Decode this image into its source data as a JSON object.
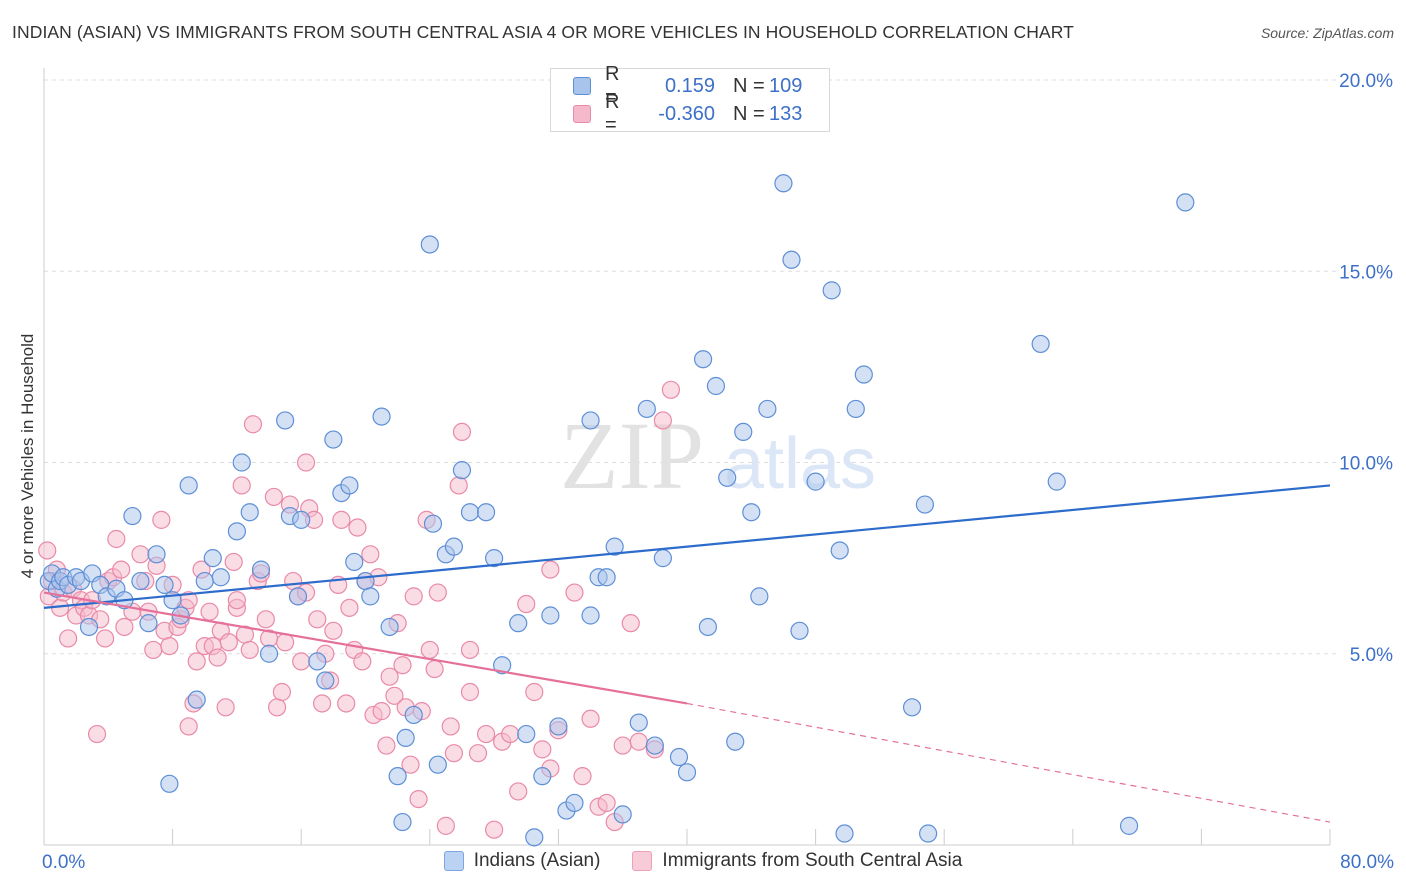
{
  "title": "INDIAN (ASIAN) VS IMMIGRANTS FROM SOUTH CENTRAL ASIA 4 OR MORE VEHICLES IN HOUSEHOLD CORRELATION CHART",
  "source": "Source: ZipAtlas.com",
  "watermark": {
    "zip": "ZIP",
    "atlas": "atlas"
  },
  "legend": {
    "r_label": "R =",
    "n_label": "N =",
    "rows": [
      {
        "r": "0.159",
        "n": "109"
      },
      {
        "r": "-0.360",
        "n": "133"
      }
    ]
  },
  "colors": {
    "blue_fill": "#a9c4ec",
    "blue_stroke": "#5e8fd6",
    "blue_line": "#2d6ccb",
    "pink_fill": "#f5b9cb",
    "pink_stroke": "#e98aa8",
    "pink_line": "#e5709a",
    "tick_text": "#3d70c8",
    "grid": "#dddddd"
  },
  "chart_data": {
    "type": "scatter",
    "title": "INDIAN (ASIAN) VS IMMIGRANTS FROM SOUTH CENTRAL ASIA 4 OR MORE VEHICLES IN HOUSEHOLD CORRELATION CHART",
    "xlabel": "",
    "ylabel": "4 or more Vehicles in Household",
    "xlim": [
      0,
      80
    ],
    "ylim": [
      0,
      20
    ],
    "x_tick_labels": [
      "0.0%",
      "80.0%"
    ],
    "y_ticks": [
      5,
      10,
      15,
      20
    ],
    "y_tick_labels": [
      "5.0%",
      "10.0%",
      "15.0%",
      "20.0%"
    ],
    "grid": true,
    "legend_position": "top-center",
    "series": [
      {
        "name": "Indians (Asian)",
        "color": "#a9c4ec",
        "trend": {
          "x0": 0,
          "y0": 6.2,
          "x1": 80,
          "y1": 9.4
        },
        "points": [
          [
            0.3,
            6.9
          ],
          [
            0.5,
            7.1
          ],
          [
            0.8,
            6.7
          ],
          [
            1.0,
            6.9
          ],
          [
            1.2,
            7.0
          ],
          [
            1.5,
            6.8
          ],
          [
            2.0,
            7.0
          ],
          [
            2.3,
            6.9
          ],
          [
            2.8,
            5.7
          ],
          [
            3.0,
            7.1
          ],
          [
            3.5,
            6.8
          ],
          [
            3.9,
            6.5
          ],
          [
            4.5,
            6.7
          ],
          [
            5.0,
            6.4
          ],
          [
            5.5,
            8.6
          ],
          [
            6.0,
            6.9
          ],
          [
            6.5,
            5.8
          ],
          [
            7.0,
            7.6
          ],
          [
            7.5,
            6.8
          ],
          [
            8.0,
            6.4
          ],
          [
            8.5,
            6.0
          ],
          [
            9.0,
            9.4
          ],
          [
            9.5,
            3.8
          ],
          [
            10.0,
            6.9
          ],
          [
            10.5,
            7.5
          ],
          [
            11.0,
            7.0
          ],
          [
            12.0,
            8.2
          ],
          [
            12.3,
            10.0
          ],
          [
            12.8,
            8.7
          ],
          [
            13.5,
            7.2
          ],
          [
            14.0,
            5.0
          ],
          [
            15.0,
            11.1
          ],
          [
            15.3,
            8.6
          ],
          [
            15.8,
            6.5
          ],
          [
            16.0,
            8.5
          ],
          [
            17.0,
            4.8
          ],
          [
            17.5,
            4.3
          ],
          [
            18.0,
            10.6
          ],
          [
            18.5,
            9.2
          ],
          [
            19.0,
            9.4
          ],
          [
            19.3,
            7.4
          ],
          [
            20.0,
            6.9
          ],
          [
            20.3,
            6.5
          ],
          [
            21.0,
            11.2
          ],
          [
            21.5,
            5.7
          ],
          [
            22.0,
            1.8
          ],
          [
            22.3,
            0.6
          ],
          [
            22.5,
            2.8
          ],
          [
            23.0,
            3.4
          ],
          [
            24.0,
            15.7
          ],
          [
            24.2,
            8.4
          ],
          [
            24.5,
            2.1
          ],
          [
            25.0,
            7.6
          ],
          [
            25.5,
            7.8
          ],
          [
            26.0,
            9.8
          ],
          [
            26.5,
            8.7
          ],
          [
            27.5,
            8.7
          ],
          [
            28.0,
            7.5
          ],
          [
            28.5,
            4.7
          ],
          [
            29.5,
            5.8
          ],
          [
            30.0,
            2.9
          ],
          [
            30.5,
            0.2
          ],
          [
            31.0,
            1.8
          ],
          [
            31.5,
            6.0
          ],
          [
            32.0,
            3.1
          ],
          [
            32.5,
            0.9
          ],
          [
            33.0,
            1.1
          ],
          [
            34.0,
            11.1
          ],
          [
            34.5,
            7.0
          ],
          [
            35.0,
            7.0
          ],
          [
            35.5,
            7.8
          ],
          [
            36.0,
            0.8
          ],
          [
            37.0,
            3.2
          ],
          [
            37.5,
            11.4
          ],
          [
            38.0,
            2.6
          ],
          [
            38.5,
            7.5
          ],
          [
            39.5,
            2.3
          ],
          [
            40.0,
            1.9
          ],
          [
            41.0,
            12.7
          ],
          [
            41.3,
            5.7
          ],
          [
            41.8,
            12.0
          ],
          [
            42.5,
            9.6
          ],
          [
            43.0,
            2.7
          ],
          [
            43.5,
            10.8
          ],
          [
            44.0,
            8.7
          ],
          [
            44.5,
            6.5
          ],
          [
            45.0,
            11.4
          ],
          [
            46.0,
            17.3
          ],
          [
            46.5,
            15.3
          ],
          [
            47.0,
            5.6
          ],
          [
            48.0,
            9.5
          ],
          [
            49.0,
            14.5
          ],
          [
            49.5,
            7.7
          ],
          [
            49.8,
            0.3
          ],
          [
            50.5,
            11.4
          ],
          [
            51.0,
            12.3
          ],
          [
            54.0,
            3.6
          ],
          [
            54.8,
            8.9
          ],
          [
            55.0,
            0.3
          ],
          [
            62.0,
            13.1
          ],
          [
            63.0,
            9.5
          ],
          [
            67.5,
            0.5
          ],
          [
            71.0,
            16.8
          ],
          [
            7.8,
            1.6
          ],
          [
            34.0,
            6.0
          ]
        ]
      },
      {
        "name": "Immigrants from South Central Asia",
        "color": "#f5b9cb",
        "trend": {
          "x0": 0,
          "y0": 6.6,
          "x1": 40,
          "y1": 3.7
        },
        "trend_dashed": {
          "x0": 40,
          "y0": 3.7,
          "x1": 80,
          "y1": 0.6
        },
        "points": [
          [
            0.2,
            7.7
          ],
          [
            0.3,
            6.5
          ],
          [
            0.5,
            6.9
          ],
          [
            0.8,
            7.2
          ],
          [
            1.0,
            6.2
          ],
          [
            1.2,
            6.6
          ],
          [
            1.5,
            5.4
          ],
          [
            1.8,
            6.7
          ],
          [
            2.0,
            6.0
          ],
          [
            2.3,
            6.4
          ],
          [
            2.5,
            6.2
          ],
          [
            2.8,
            6.0
          ],
          [
            3.0,
            6.4
          ],
          [
            3.3,
            2.9
          ],
          [
            3.5,
            5.9
          ],
          [
            3.8,
            5.4
          ],
          [
            4.0,
            6.9
          ],
          [
            4.3,
            7.0
          ],
          [
            4.5,
            8.0
          ],
          [
            4.8,
            7.2
          ],
          [
            5.0,
            5.7
          ],
          [
            5.5,
            6.1
          ],
          [
            6.0,
            7.6
          ],
          [
            6.3,
            6.9
          ],
          [
            6.5,
            6.1
          ],
          [
            6.8,
            5.1
          ],
          [
            7.0,
            7.3
          ],
          [
            7.3,
            8.5
          ],
          [
            7.5,
            5.6
          ],
          [
            7.8,
            5.2
          ],
          [
            8.0,
            6.8
          ],
          [
            8.3,
            5.7
          ],
          [
            8.5,
            5.9
          ],
          [
            8.8,
            6.2
          ],
          [
            9.0,
            6.4
          ],
          [
            9.3,
            3.7
          ],
          [
            9.5,
            4.8
          ],
          [
            9.8,
            7.2
          ],
          [
            10.0,
            5.2
          ],
          [
            10.3,
            6.1
          ],
          [
            10.5,
            5.2
          ],
          [
            10.8,
            4.9
          ],
          [
            11.0,
            5.6
          ],
          [
            11.3,
            3.6
          ],
          [
            11.5,
            5.3
          ],
          [
            11.8,
            7.4
          ],
          [
            12.0,
            6.2
          ],
          [
            12.3,
            9.4
          ],
          [
            12.5,
            5.5
          ],
          [
            12.8,
            5.1
          ],
          [
            13.0,
            11.0
          ],
          [
            13.3,
            6.9
          ],
          [
            13.5,
            7.1
          ],
          [
            13.8,
            5.9
          ],
          [
            14.0,
            5.4
          ],
          [
            14.3,
            9.1
          ],
          [
            14.5,
            3.6
          ],
          [
            14.8,
            4.0
          ],
          [
            15.0,
            5.3
          ],
          [
            15.3,
            8.9
          ],
          [
            15.5,
            6.9
          ],
          [
            15.8,
            6.5
          ],
          [
            16.0,
            4.8
          ],
          [
            16.3,
            10.0
          ],
          [
            16.5,
            8.8
          ],
          [
            16.8,
            8.5
          ],
          [
            17.0,
            5.9
          ],
          [
            17.3,
            3.7
          ],
          [
            17.5,
            5.0
          ],
          [
            17.8,
            4.3
          ],
          [
            18.0,
            5.6
          ],
          [
            18.3,
            6.8
          ],
          [
            18.5,
            8.5
          ],
          [
            18.8,
            3.7
          ],
          [
            19.0,
            6.2
          ],
          [
            19.3,
            5.1
          ],
          [
            19.5,
            8.3
          ],
          [
            19.8,
            4.8
          ],
          [
            20.0,
            6.9
          ],
          [
            20.3,
            7.6
          ],
          [
            20.5,
            3.4
          ],
          [
            20.8,
            7.0
          ],
          [
            21.0,
            3.5
          ],
          [
            21.3,
            2.6
          ],
          [
            21.5,
            4.4
          ],
          [
            21.8,
            3.9
          ],
          [
            22.0,
            5.8
          ],
          [
            22.3,
            4.7
          ],
          [
            22.5,
            3.6
          ],
          [
            22.8,
            2.1
          ],
          [
            23.0,
            6.5
          ],
          [
            23.3,
            1.2
          ],
          [
            23.5,
            3.5
          ],
          [
            23.8,
            8.5
          ],
          [
            24.0,
            5.1
          ],
          [
            24.3,
            4.6
          ],
          [
            24.5,
            6.6
          ],
          [
            25.0,
            0.5
          ],
          [
            25.3,
            3.1
          ],
          [
            25.5,
            2.4
          ],
          [
            25.8,
            9.4
          ],
          [
            26.0,
            10.8
          ],
          [
            26.5,
            4.0
          ],
          [
            27.0,
            2.4
          ],
          [
            27.5,
            2.9
          ],
          [
            28.0,
            0.4
          ],
          [
            28.5,
            2.7
          ],
          [
            29.0,
            2.9
          ],
          [
            29.5,
            1.4
          ],
          [
            30.0,
            6.3
          ],
          [
            30.5,
            4.0
          ],
          [
            31.0,
            2.5
          ],
          [
            31.5,
            2.0
          ],
          [
            32.0,
            3.0
          ],
          [
            33.0,
            6.6
          ],
          [
            33.5,
            1.8
          ],
          [
            34.0,
            3.3
          ],
          [
            34.5,
            1.0
          ],
          [
            35.0,
            1.1
          ],
          [
            35.5,
            0.6
          ],
          [
            36.0,
            2.6
          ],
          [
            36.5,
            5.8
          ],
          [
            37.0,
            2.7
          ],
          [
            38.0,
            2.5
          ],
          [
            38.5,
            11.1
          ],
          [
            39.0,
            11.9
          ],
          [
            16.3,
            6.6
          ],
          [
            26.5,
            5.1
          ],
          [
            12.0,
            6.4
          ],
          [
            31.5,
            7.2
          ],
          [
            9.0,
            3.1
          ]
        ]
      }
    ]
  },
  "bottom_legend": {
    "items": [
      {
        "label": "Indians (Asian)"
      },
      {
        "label": "Immigrants from South Central Asia"
      }
    ]
  }
}
